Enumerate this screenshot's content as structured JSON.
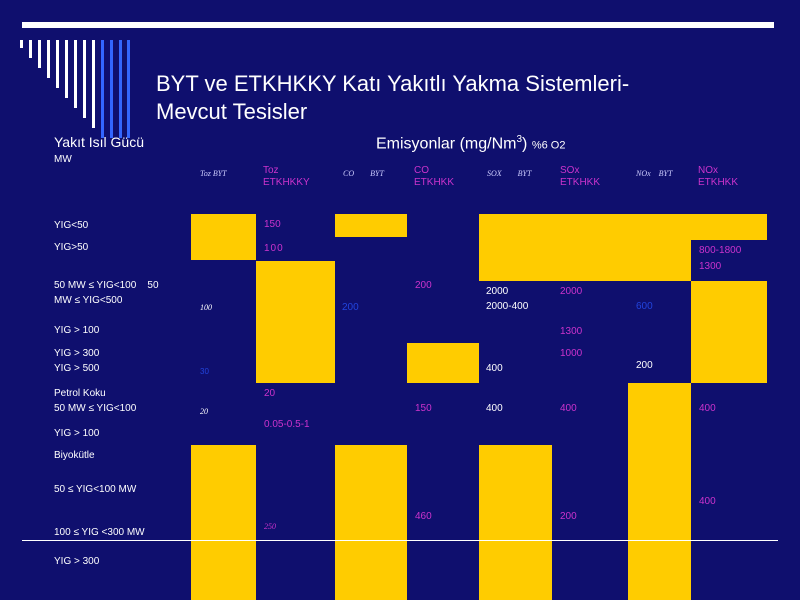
{
  "slide": {
    "title_line1": "BYT ve ETKHKKY Katı Yakıtlı Yakma Sistemleri-",
    "title_line2": "Mevcut Tesisler",
    "header_left": "Yakıt Isıl Gücü",
    "header_unit": "MW",
    "emissions_title": "Emisyonlar (mg/Nm",
    "emissions_sup": "3",
    "emissions_close": ")",
    "emissions_o2": "%6 O2"
  },
  "columns": {
    "toz_byt": "Toz    BYT",
    "toz_etk": "Toz ETKHKKY",
    "co_byt": "CO        BYT",
    "co_etk": "CO ETKHKK",
    "sox_byt": "SOX        BYT",
    "sox_etk": "SOx ETKHKK",
    "nox_byt": "NOx    BYT",
    "nox_etk": "NOx ETKHKK"
  },
  "rows": {
    "r1": "YIG<50",
    "r2": "YIG>50",
    "r3a": "50 MW ≤ YIG<100    50",
    "r3b": "MW ≤ YIG<500",
    "r4": "YIG > 100",
    "r5a": "YIG > 300",
    "r5b": "YIG > 500",
    "r6a": "Petrol Koku",
    "r6b": "50 MW ≤ YIG<100",
    "r6c": "YIG > 100",
    "r7a": "Biyokütle",
    "r7b": "50 ≤ YIG<100 MW",
    "r7c": "100 ≤ YIG <300 MW",
    "r7d": "YIG > 300"
  },
  "values": {
    "toz_etk_150": "150",
    "toz_etk_100": "100",
    "nox_etk_800": "800-1800",
    "nox_etk_1300": "1300",
    "co_etk_200": "200",
    "sox_byt_2000": "2000",
    "sox_byt_2000_400": "2000-400",
    "sox_etk_2000": "2000",
    "toz_byt_100": "100",
    "co_byt_200": "200",
    "nox_byt_600": "600",
    "sox_etk_1300": "1300",
    "sox_etk_1000": "1000",
    "toz_byt_30": "30",
    "sox_byt_400": "400",
    "nox_byt_200": "200",
    "toz_etk_20": "20",
    "toz_byt_20": "20",
    "co_etk_150": "150",
    "sox_byt_400b": "400",
    "sox_etk_400": "400",
    "nox_etk_400": "400",
    "toz_etk_range": "0.05-0.5-1",
    "nox_etk_400b": "400",
    "co_etk_460": "460",
    "sox_etk_200": "200",
    "toz_etk_250": "250"
  },
  "colors": {
    "background": "#0f0f6e",
    "highlight": "#ffcc00",
    "magenta": "#cc33cc",
    "stripe_white": "#ffffff",
    "stripe_blue": "#3366ff"
  }
}
